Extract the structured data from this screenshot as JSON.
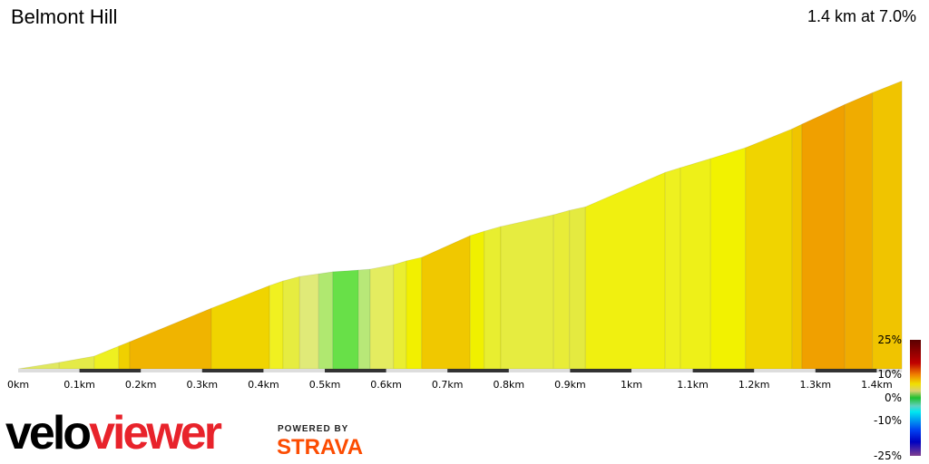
{
  "header": {
    "title": "Belmont Hill",
    "summary": "1.4 km at 7.0%"
  },
  "chart_data": {
    "type": "area",
    "title": "Belmont Hill",
    "xlabel": "",
    "ylabel": "",
    "x_unit": "km",
    "xlim": [
      0,
      1.441
    ],
    "x_ticks": [
      "0km",
      "0.1km",
      "0.2km",
      "0.3km",
      "0.4km",
      "0.5km",
      "0.6km",
      "0.7km",
      "0.8km",
      "0.9km",
      "1km",
      "1.1km",
      "1.2km",
      "1.3km",
      "1.4km"
    ],
    "profile_km": [
      0,
      0.067,
      0.124,
      0.164,
      0.182,
      0.315,
      0.41,
      0.432,
      0.459,
      0.49,
      0.513,
      0.555,
      0.574,
      0.612,
      0.633,
      0.658,
      0.737,
      0.76,
      0.787,
      0.873,
      0.899,
      0.925,
      1.055,
      1.08,
      1.129,
      1.186,
      1.262,
      1.278,
      1.348,
      1.393,
      1.441
    ],
    "elevation_gain_m": [
      0,
      2.2,
      4.3,
      7.7,
      9.2,
      20.6,
      28.3,
      29.9,
      31.4,
      32.3,
      33.0,
      33.6,
      33.9,
      35.4,
      36.7,
      37.9,
      45.3,
      46.8,
      48.4,
      52.4,
      53.9,
      55.1,
      66.8,
      68.4,
      71.5,
      75.2,
      81.6,
      83.2,
      89.9,
      93.9,
      97.9
    ],
    "segment_colors": [
      "#e0e860",
      "#e4ea48",
      "#eef020",
      "#f0d000",
      "#f0b400",
      "#f0d400",
      "#f0f020",
      "#e6ec40",
      "#e0ea78",
      "#b0e870",
      "#68e048",
      "#b8e878",
      "#e4ec60",
      "#eaee30",
      "#f2f000",
      "#f0c800",
      "#f0f000",
      "#e8ee30",
      "#e6ec40",
      "#e8ec38",
      "#e4ea40",
      "#f0f010",
      "#eef020",
      "#eef018",
      "#f2f200",
      "#f0d400",
      "#f0c400",
      "#f0a000",
      "#f0ac00",
      "#f0c400"
    ],
    "gradient_legend": {
      "labels": [
        "25%",
        "10%",
        "0%",
        "-10%",
        "-25%"
      ],
      "values": [
        25,
        10,
        0,
        -10,
        -25
      ]
    }
  },
  "branding": {
    "logo_a": "velo",
    "logo_b": "viewer",
    "powered_by": "POWERED BY",
    "strava": "STRAVA"
  }
}
